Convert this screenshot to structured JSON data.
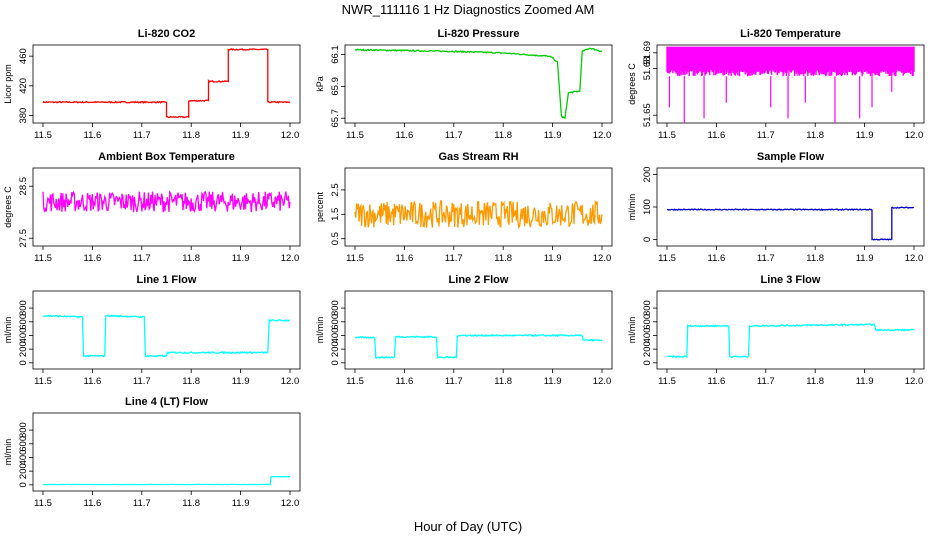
{
  "figure": {
    "title": "NWR_111116  1 Hz Diagnostics Zoomed AM",
    "xlabel": "Hour of Day (UTC)"
  },
  "chart_data": [
    {
      "type": "line",
      "title": "Li-820 CO2",
      "ylabel": "Licor ppm",
      "color": "#ff0000",
      "xlim": [
        11.5,
        12.0
      ],
      "ylim": [
        370,
        475
      ],
      "xticks": [
        "11.5",
        "11.6",
        "11.7",
        "11.8",
        "11.9",
        "12.0"
      ],
      "yticks": [
        "380",
        "420",
        "460"
      ],
      "series": [
        {
          "points": [
            [
              11.5,
              398
            ],
            [
              11.75,
              398
            ],
            [
              11.75,
              378
            ],
            [
              11.795,
              378
            ],
            [
              11.795,
              400
            ],
            [
              11.835,
              400
            ],
            [
              11.835,
              426
            ],
            [
              11.875,
              426
            ],
            [
              11.875,
              469
            ],
            [
              11.955,
              469
            ],
            [
              11.955,
              398
            ],
            [
              12.0,
              398
            ]
          ],
          "noise": 0.8
        }
      ]
    },
    {
      "type": "line",
      "title": "Li-820 Pressure",
      "ylabel": "kPa",
      "color": "#00cc00",
      "xlim": [
        11.5,
        12.0
      ],
      "ylim": [
        65.67,
        66.16
      ],
      "xticks": [
        "11.5",
        "11.6",
        "11.7",
        "11.8",
        "11.9",
        "12.0"
      ],
      "yticks": [
        "65.7",
        "65.9",
        "66.1"
      ],
      "series": [
        {
          "points": [
            [
              11.5,
              66.13
            ],
            [
              11.7,
              66.12
            ],
            [
              11.8,
              66.11
            ],
            [
              11.89,
              66.09
            ],
            [
              11.9,
              66.08
            ],
            [
              11.91,
              66.05
            ],
            [
              11.918,
              65.71
            ],
            [
              11.925,
              65.7
            ],
            [
              11.932,
              65.86
            ],
            [
              11.955,
              65.87
            ],
            [
              11.96,
              66.12
            ],
            [
              11.975,
              66.14
            ],
            [
              12.0,
              66.12
            ]
          ],
          "noise": 0.004
        }
      ]
    },
    {
      "type": "line",
      "title": "Li-820 Temperature",
      "ylabel": "degrees C",
      "color": "#ff00ff",
      "xlim": [
        11.5,
        12.0
      ],
      "ylim": [
        51.645,
        51.695
      ],
      "xticks": [
        "11.5",
        "11.6",
        "11.7",
        "11.8",
        "11.9",
        "12.0"
      ],
      "yticks": [
        "51.65",
        "51.68",
        "51.69"
      ],
      "series": [
        {
          "points": [
            [
              11.5,
              51.69
            ],
            [
              12.0,
              51.69
            ]
          ],
          "noise": 0,
          "band": [
            51.675,
            51.694
          ],
          "spikes": [
            [
              11.505,
              51.655
            ],
            [
              11.535,
              51.645
            ],
            [
              11.575,
              51.648
            ],
            [
              11.62,
              51.658
            ],
            [
              11.71,
              51.655
            ],
            [
              11.745,
              51.648
            ],
            [
              11.78,
              51.658
            ],
            [
              11.84,
              51.645
            ],
            [
              11.89,
              51.648
            ],
            [
              11.915,
              51.655
            ],
            [
              11.955,
              51.665
            ]
          ]
        }
      ]
    },
    {
      "type": "line",
      "title": "Ambient Box Temperature",
      "ylabel": "degrees C",
      "color": "#ff00ff",
      "xlim": [
        11.5,
        12.0
      ],
      "ylim": [
        27.35,
        28.85
      ],
      "xticks": [
        "11.5",
        "11.6",
        "11.7",
        "11.8",
        "11.9",
        "12.0"
      ],
      "yticks": [
        "27.5",
        "28.5"
      ],
      "series": [
        {
          "points": [
            [
              11.5,
              28.2
            ],
            [
              12.0,
              28.2
            ]
          ],
          "noise": 0.2
        }
      ]
    },
    {
      "type": "line",
      "title": "Gas Stream RH",
      "ylabel": "percent",
      "color": "#ff9900",
      "xlim": [
        11.5,
        12.0
      ],
      "ylim": [
        0.2,
        3.4
      ],
      "xticks": [
        "11.5",
        "11.6",
        "11.7",
        "11.8",
        "11.9",
        "12.0"
      ],
      "yticks": [
        "0.5",
        "1.5",
        "2.5"
      ],
      "series": [
        {
          "points": [
            [
              11.5,
              1.5
            ],
            [
              12.0,
              1.5
            ]
          ],
          "noise": 0.55
        }
      ]
    },
    {
      "type": "line",
      "title": "Sample Flow",
      "ylabel": "ml/min",
      "color": "#0000cc",
      "xlim": [
        11.5,
        12.0
      ],
      "ylim": [
        -20,
        220
      ],
      "xticks": [
        "11.5",
        "11.6",
        "11.7",
        "11.8",
        "11.9",
        "12.0"
      ],
      "yticks": [
        "0",
        "100",
        "200"
      ],
      "series": [
        {
          "points": [
            [
              11.5,
              92
            ],
            [
              11.915,
              92
            ],
            [
              11.915,
              0
            ],
            [
              11.955,
              0
            ],
            [
              11.955,
              98
            ],
            [
              12.0,
              98
            ]
          ],
          "noise": 1.5
        }
      ]
    },
    {
      "type": "line",
      "title": "Line 1 Flow",
      "ylabel": "ml/min",
      "color": "#00ffff",
      "xlim": [
        11.5,
        12.0
      ],
      "ylim": [
        -90,
        1050
      ],
      "xticks": [
        "11.5",
        "11.6",
        "11.7",
        "11.8",
        "11.9",
        "12.0"
      ],
      "yticks": [
        "0",
        "200",
        "400",
        "600",
        "800"
      ],
      "series": [
        {
          "points": [
            [
              11.5,
              690
            ],
            [
              11.58,
              670
            ],
            [
              11.582,
              100
            ],
            [
              11.625,
              100
            ],
            [
              11.627,
              690
            ],
            [
              11.705,
              670
            ],
            [
              11.707,
              100
            ],
            [
              11.75,
              100
            ],
            [
              11.752,
              150
            ],
            [
              11.955,
              150
            ],
            [
              11.958,
              620
            ],
            [
              12.0,
              620
            ]
          ],
          "noise": 10
        }
      ]
    },
    {
      "type": "line",
      "title": "Line 2 Flow",
      "ylabel": "ml/min",
      "color": "#00ffff",
      "xlim": [
        11.5,
        12.0
      ],
      "ylim": [
        -90,
        1050
      ],
      "xticks": [
        "11.5",
        "11.6",
        "11.7",
        "11.8",
        "11.9",
        "12.0"
      ],
      "yticks": [
        "0",
        "200",
        "400",
        "600",
        "800"
      ],
      "series": [
        {
          "points": [
            [
              11.5,
              370
            ],
            [
              11.54,
              370
            ],
            [
              11.542,
              80
            ],
            [
              11.58,
              80
            ],
            [
              11.582,
              380
            ],
            [
              11.665,
              380
            ],
            [
              11.667,
              80
            ],
            [
              11.705,
              80
            ],
            [
              11.707,
              400
            ],
            [
              11.96,
              400
            ],
            [
              11.962,
              330
            ],
            [
              12.0,
              330
            ]
          ],
          "noise": 10
        }
      ]
    },
    {
      "type": "line",
      "title": "Line 3 Flow",
      "ylabel": "ml/min",
      "color": "#00ffff",
      "xlim": [
        11.5,
        12.0
      ],
      "ylim": [
        -90,
        1050
      ],
      "xticks": [
        "11.5",
        "11.6",
        "11.7",
        "11.8",
        "11.9",
        "12.0"
      ],
      "yticks": [
        "0",
        "200",
        "400",
        "600",
        "800"
      ],
      "series": [
        {
          "points": [
            [
              11.5,
              90
            ],
            [
              11.54,
              90
            ],
            [
              11.542,
              540
            ],
            [
              11.625,
              540
            ],
            [
              11.627,
              90
            ],
            [
              11.665,
              90
            ],
            [
              11.667,
              540
            ],
            [
              11.92,
              560
            ],
            [
              11.922,
              480
            ],
            [
              12.0,
              480
            ]
          ],
          "noise": 10
        }
      ]
    },
    {
      "type": "line",
      "title": "Line 4 (LT) Flow",
      "ylabel": "ml/min",
      "color": "#00ffff",
      "xlim": [
        11.5,
        12.0
      ],
      "ylim": [
        -90,
        1050
      ],
      "xticks": [
        "11.5",
        "11.6",
        "11.7",
        "11.8",
        "11.9",
        "12.0"
      ],
      "yticks": [
        "0",
        "200",
        "400",
        "600",
        "800"
      ],
      "series": [
        {
          "points": [
            [
              11.5,
              5
            ],
            [
              11.96,
              5
            ],
            [
              11.962,
              120
            ],
            [
              12.0,
              120
            ]
          ],
          "noise": 2
        }
      ]
    }
  ]
}
